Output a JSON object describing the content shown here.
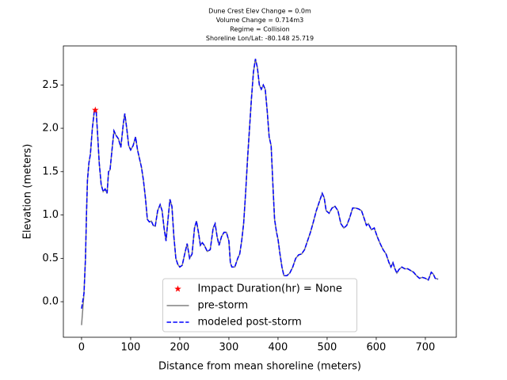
{
  "chart_data": {
    "type": "line",
    "title": [
      "Dune Crest Elev Change = 0.0m",
      "Volume Change = 0.714m3",
      "Regime = Collision",
      "Shoreline Lon/Lat: -80.148 25.719"
    ],
    "xlabel": "Distance from mean shoreline (meters)",
    "ylabel": "Elevation (meters)",
    "xlim": [
      -37,
      763
    ],
    "ylim": [
      -0.41,
      2.95
    ],
    "xticks": [
      0,
      100,
      200,
      300,
      400,
      500,
      600,
      700
    ],
    "yticks": [
      {
        "value": 0,
        "label": "0.0"
      },
      0.5,
      {
        "value": 1,
        "label": "1.0"
      },
      1.5,
      {
        "value": 2,
        "label": "2.0"
      },
      2.5
    ],
    "legend": "lower center",
    "x": [
      0,
      5,
      8,
      10,
      12,
      15,
      18,
      22,
      26,
      30,
      33,
      36,
      40,
      44,
      48,
      52,
      55,
      58,
      62,
      66,
      70,
      75,
      80,
      85,
      88,
      92,
      96,
      100,
      105,
      110,
      114,
      118,
      122,
      126,
      130,
      134,
      138,
      142,
      146,
      150,
      155,
      160,
      164,
      168,
      172,
      176,
      180,
      184,
      188,
      192,
      196,
      200,
      205,
      210,
      215,
      220,
      225,
      230,
      234,
      238,
      242,
      246,
      250,
      256,
      262,
      268,
      272,
      276,
      280,
      285,
      290,
      295,
      300,
      303,
      306,
      312,
      318,
      322,
      326,
      330,
      334,
      338,
      342,
      346,
      350,
      354,
      358,
      362,
      366,
      370,
      374,
      378,
      382,
      386,
      390,
      393,
      397,
      400,
      404,
      408,
      412,
      418,
      424,
      430,
      436,
      442,
      448,
      454,
      460,
      466,
      472,
      478,
      484,
      490,
      494,
      498,
      504,
      510,
      516,
      522,
      528,
      534,
      540,
      546,
      552,
      558,
      564,
      570,
      576,
      580,
      584,
      590,
      596,
      602,
      608,
      614,
      620,
      626,
      630,
      634,
      638,
      642,
      646,
      652,
      658,
      664,
      670,
      676,
      682,
      688,
      694,
      700,
      706,
      712,
      716,
      720,
      726
    ],
    "series": [
      {
        "name": "pre-storm",
        "color": "#808080",
        "dashed": false,
        "values": [
          -0.27,
          0.1,
          0.5,
          1.0,
          1.4,
          1.6,
          1.7,
          2.0,
          2.2,
          2.18,
          1.9,
          1.6,
          1.35,
          1.27,
          1.3,
          1.25,
          1.5,
          1.52,
          1.75,
          1.97,
          1.92,
          1.88,
          1.78,
          2.05,
          2.17,
          2.0,
          1.8,
          1.75,
          1.8,
          1.9,
          1.75,
          1.65,
          1.55,
          1.4,
          1.2,
          0.95,
          0.92,
          0.93,
          0.88,
          0.87,
          1.05,
          1.12,
          1.05,
          0.85,
          0.7,
          0.95,
          1.18,
          1.1,
          0.75,
          0.5,
          0.43,
          0.4,
          0.42,
          0.55,
          0.67,
          0.5,
          0.55,
          0.85,
          0.93,
          0.8,
          0.65,
          0.68,
          0.65,
          0.58,
          0.6,
          0.85,
          0.9,
          0.75,
          0.65,
          0.75,
          0.8,
          0.8,
          0.7,
          0.45,
          0.4,
          0.4,
          0.5,
          0.55,
          0.7,
          0.9,
          1.25,
          1.65,
          2.0,
          2.35,
          2.65,
          2.8,
          2.7,
          2.5,
          2.45,
          2.5,
          2.45,
          2.2,
          1.9,
          1.8,
          1.3,
          0.95,
          0.8,
          0.72,
          0.55,
          0.4,
          0.3,
          0.3,
          0.33,
          0.4,
          0.5,
          0.54,
          0.55,
          0.6,
          0.7,
          0.8,
          0.92,
          1.05,
          1.15,
          1.25,
          1.2,
          1.05,
          1.02,
          1.08,
          1.1,
          1.05,
          0.9,
          0.85,
          0.88,
          0.97,
          1.08,
          1.08,
          1.07,
          1.05,
          0.95,
          0.88,
          0.9,
          0.83,
          0.85,
          0.75,
          0.67,
          0.6,
          0.55,
          0.45,
          0.4,
          0.45,
          0.38,
          0.33,
          0.37,
          0.4,
          0.38,
          0.38,
          0.36,
          0.34,
          0.3,
          0.27,
          0.28,
          0.27,
          0.25,
          0.34,
          0.32,
          0.27,
          0.26
        ]
      },
      {
        "name": "modeled post-storm",
        "color": "#0000ff",
        "dashed": true,
        "values": [
          -0.08,
          0.1,
          0.5,
          1.0,
          1.4,
          1.6,
          1.7,
          2.0,
          2.2,
          2.18,
          1.9,
          1.6,
          1.35,
          1.27,
          1.3,
          1.25,
          1.5,
          1.52,
          1.75,
          1.97,
          1.92,
          1.88,
          1.78,
          2.05,
          2.17,
          2.0,
          1.8,
          1.75,
          1.8,
          1.9,
          1.75,
          1.65,
          1.55,
          1.4,
          1.2,
          0.95,
          0.92,
          0.93,
          0.88,
          0.87,
          1.05,
          1.12,
          1.05,
          0.85,
          0.7,
          0.95,
          1.18,
          1.1,
          0.75,
          0.5,
          0.43,
          0.4,
          0.42,
          0.55,
          0.67,
          0.5,
          0.55,
          0.85,
          0.93,
          0.8,
          0.65,
          0.68,
          0.65,
          0.58,
          0.6,
          0.85,
          0.9,
          0.75,
          0.65,
          0.75,
          0.8,
          0.8,
          0.7,
          0.45,
          0.4,
          0.4,
          0.5,
          0.55,
          0.7,
          0.9,
          1.25,
          1.65,
          2.0,
          2.35,
          2.65,
          2.8,
          2.7,
          2.5,
          2.45,
          2.5,
          2.45,
          2.2,
          1.9,
          1.8,
          1.3,
          0.95,
          0.8,
          0.72,
          0.55,
          0.4,
          0.3,
          0.3,
          0.33,
          0.4,
          0.5,
          0.54,
          0.55,
          0.6,
          0.7,
          0.8,
          0.92,
          1.05,
          1.15,
          1.25,
          1.2,
          1.05,
          1.02,
          1.08,
          1.1,
          1.05,
          0.9,
          0.85,
          0.88,
          0.97,
          1.08,
          1.08,
          1.07,
          1.05,
          0.95,
          0.88,
          0.9,
          0.83,
          0.85,
          0.75,
          0.67,
          0.6,
          0.55,
          0.45,
          0.4,
          0.45,
          0.38,
          0.33,
          0.37,
          0.4,
          0.38,
          0.38,
          0.36,
          0.34,
          0.3,
          0.27,
          0.28,
          0.27,
          0.25,
          0.34,
          0.32,
          0.27,
          0.26
        ]
      }
    ],
    "marker": {
      "name": "Impact Duration(hr) = None",
      "color": "#ff0000",
      "x": 28,
      "y": 2.21
    }
  }
}
